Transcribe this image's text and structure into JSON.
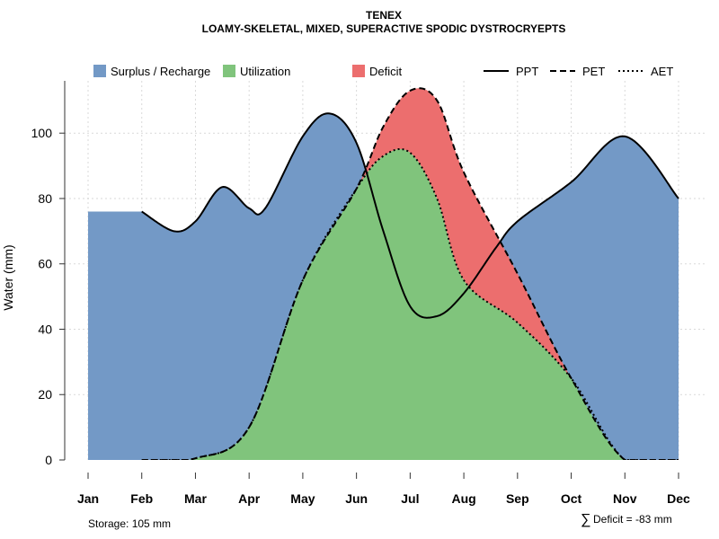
{
  "chart_data": {
    "type": "area",
    "title": "TENEX",
    "subtitle": "LOAMY-SKELETAL, MIXED, SUPERACTIVE SPODIC DYSTROCRYEPTS",
    "ylabel": "Water (mm)",
    "xlabel": "",
    "ylim": [
      0,
      116
    ],
    "yticks": [
      0,
      20,
      40,
      60,
      80,
      100
    ],
    "grid": true,
    "categories": [
      "Jan",
      "Feb",
      "Mar",
      "Apr",
      "May",
      "Jun",
      "Jul",
      "Aug",
      "Sep",
      "Oct",
      "Nov",
      "Dec"
    ],
    "series": [
      {
        "name": "PPT",
        "line": "solid",
        "values": [
          [
            1,
            76
          ],
          [
            1.6,
            70
          ],
          [
            2,
            73
          ],
          [
            2.5,
            83.5
          ],
          [
            3,
            77
          ],
          [
            3.3,
            77
          ],
          [
            4,
            99
          ],
          [
            4.5,
            106
          ],
          [
            5,
            97
          ],
          [
            5.5,
            70
          ],
          [
            6,
            47
          ],
          [
            6.5,
            44
          ],
          [
            7,
            51
          ],
          [
            7.6,
            65
          ],
          [
            8,
            73
          ],
          [
            9,
            85
          ],
          [
            10,
            99
          ],
          [
            11,
            80
          ]
        ]
      },
      {
        "name": "PET",
        "line": "dashed",
        "values": [
          [
            1,
            0
          ],
          [
            2,
            0.5
          ],
          [
            3,
            10
          ],
          [
            4,
            55
          ],
          [
            5,
            83
          ],
          [
            5.5,
            102
          ],
          [
            6,
            113
          ],
          [
            6.5,
            110
          ],
          [
            7,
            88
          ],
          [
            8,
            57
          ],
          [
            9,
            25
          ],
          [
            10,
            0
          ],
          [
            11,
            0
          ]
        ]
      },
      {
        "name": "AET",
        "line": "dotted",
        "values": [
          [
            1,
            0
          ],
          [
            2,
            0.5
          ],
          [
            3,
            10
          ],
          [
            4,
            55
          ],
          [
            5,
            83
          ],
          [
            5.5,
            93
          ],
          [
            6,
            94
          ],
          [
            6.5,
            80
          ],
          [
            7,
            55
          ],
          [
            8,
            42
          ],
          [
            9,
            25
          ],
          [
            10,
            0
          ],
          [
            11,
            0
          ]
        ]
      }
    ],
    "areas": [
      {
        "name": "Surplus / Recharge",
        "color": "#7399C6"
      },
      {
        "name": "Utilization",
        "color": "#80C47C"
      },
      {
        "name": "Deficit",
        "color": "#EC6E6E"
      }
    ],
    "legend_position": "top"
  },
  "footer": {
    "storage": "Storage: 105 mm",
    "deficit_symbol": "∑",
    "deficit": "Deficit = -83 mm"
  }
}
